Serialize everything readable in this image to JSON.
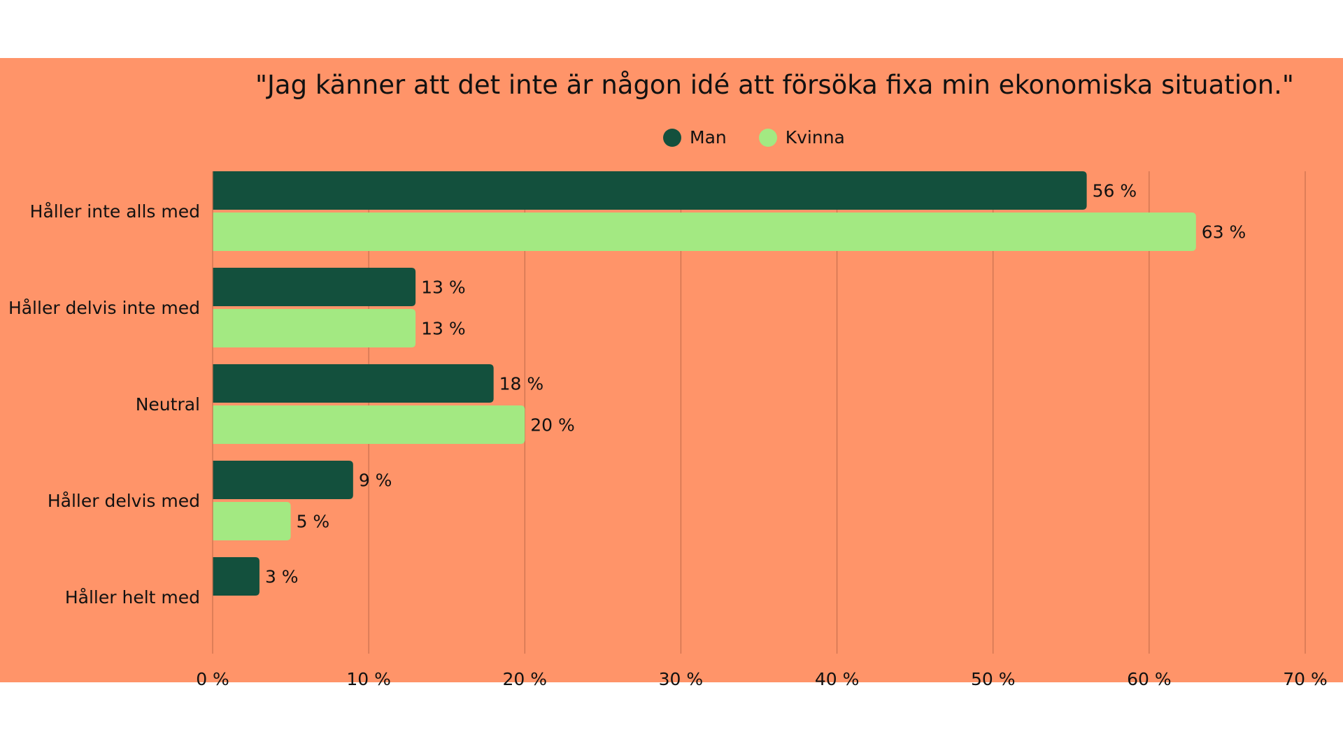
{
  "chart_data": {
    "type": "bar",
    "orientation": "horizontal",
    "title": "\"Jag känner att det inte är någon idé att försöka fixa min ekonomiska situation.\"",
    "categories": [
      "Håller inte alls med",
      "Håller delvis inte med",
      "Neutral",
      "Håller delvis med",
      "Håller helt med"
    ],
    "series": [
      {
        "name": "Man",
        "color": "#13503D",
        "values": [
          56,
          13,
          18,
          9,
          3
        ],
        "labels": [
          "56 %",
          "13 %",
          "18 %",
          "9 %",
          "3 %"
        ]
      },
      {
        "name": "Kvinna",
        "color": "#A3E982",
        "values": [
          63,
          13,
          20,
          5,
          null
        ],
        "labels": [
          "63 %",
          "13 %",
          "20 %",
          "5 %",
          ""
        ]
      }
    ],
    "xlim": [
      0,
      70
    ],
    "xticks": [
      0,
      10,
      20,
      30,
      40,
      50,
      60,
      70
    ],
    "xtick_labels": [
      "0 %",
      "10 %",
      "20 %",
      "30 %",
      "40 %",
      "50 %",
      "60 %",
      "70 %"
    ],
    "xlabel": "",
    "ylabel": "",
    "grid": "vertical",
    "legend": "top-center",
    "background_color": "#FF9469"
  }
}
